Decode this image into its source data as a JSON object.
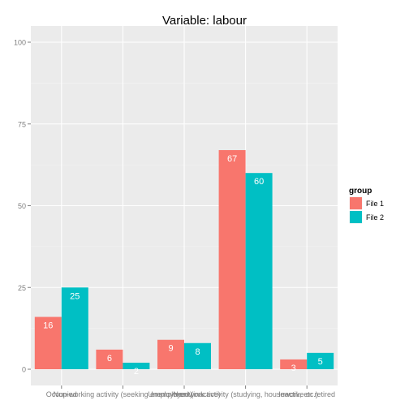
{
  "chart_data": {
    "type": "bar",
    "title": "Variable:  labour",
    "xlabel": "",
    "ylabel": "",
    "ylim": [
      0,
      105
    ],
    "yticks": [
      0,
      25,
      50,
      75,
      100
    ],
    "categories": [
      "Occupied",
      "Non-working activity (seeking employment)",
      "Unemployed (inactive)",
      "Non-work activity (studying, housework, etc.)",
      "Inactive or retired"
    ],
    "series": [
      {
        "name": "File 1",
        "color": "#F8766D",
        "values": [
          16,
          6,
          9,
          67,
          3
        ]
      },
      {
        "name": "File 2",
        "color": "#00BFC4",
        "values": [
          25,
          2,
          8,
          60,
          5
        ]
      }
    ],
    "legend": {
      "title": "group",
      "position": "right"
    },
    "grid": true
  }
}
